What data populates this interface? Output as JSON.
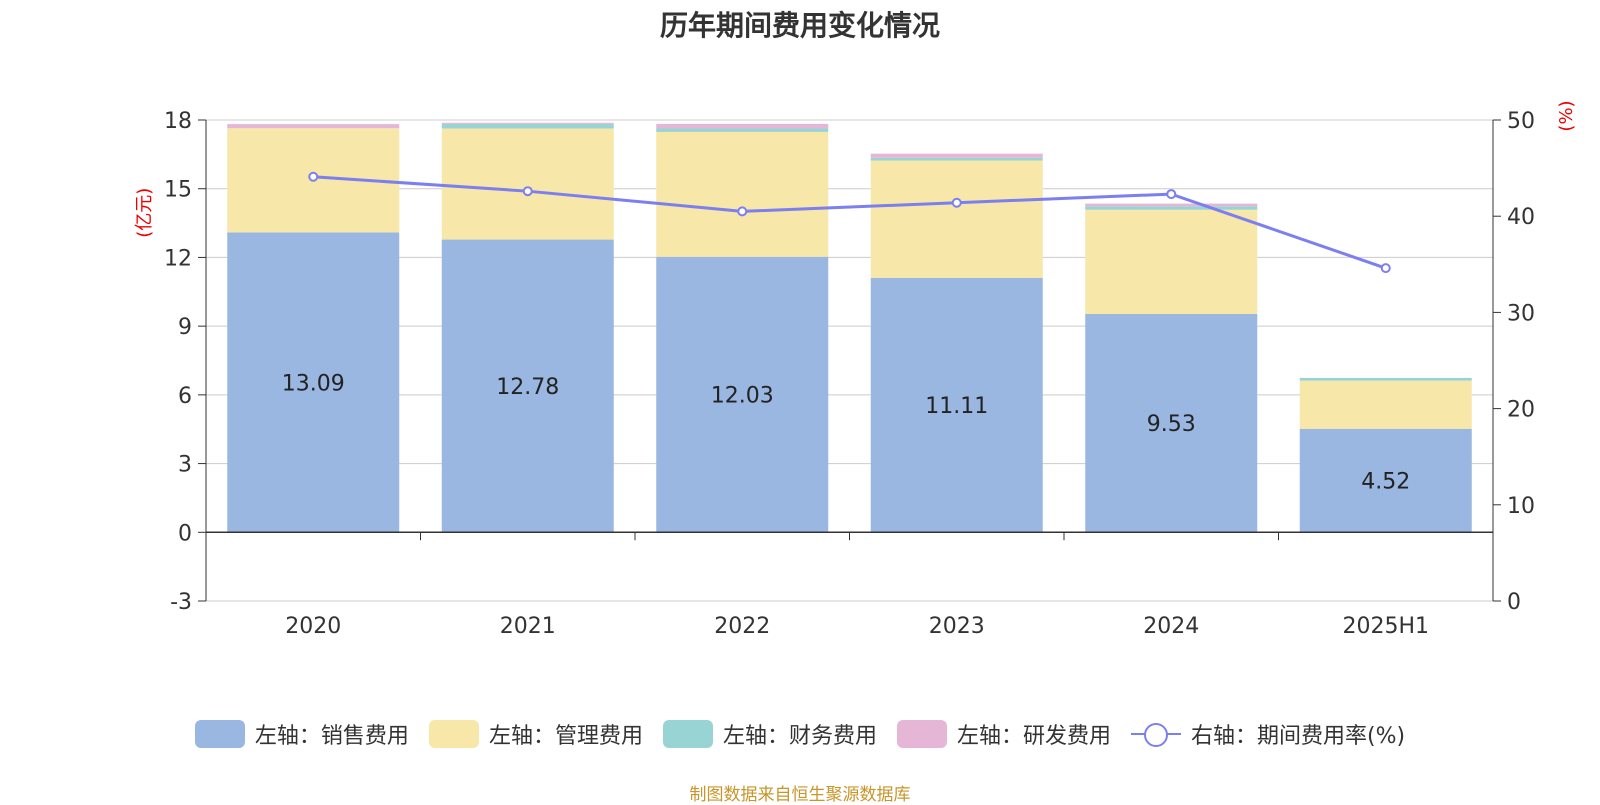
{
  "chart_data": {
    "type": "bar",
    "title": "历年期间费用变化情况",
    "categories": [
      "2020",
      "2021",
      "2022",
      "2023",
      "2024",
      "2025H1"
    ],
    "left_axis": {
      "unit": "(亿元)",
      "ylim": [
        -3,
        18
      ],
      "ticks": [
        "18",
        "15",
        "12",
        "9",
        "6",
        "3",
        "0",
        "-3"
      ]
    },
    "right_axis": {
      "unit": "(%)",
      "ylim": [
        0,
        50
      ],
      "ticks": [
        "50",
        "40",
        "30",
        "20",
        "10",
        "0"
      ]
    },
    "grid": true,
    "legend_position": "bottom",
    "series": [
      {
        "name": "左轴：销售费用",
        "kind": "bar",
        "axis": "left",
        "color": "#9ab7e1",
        "values": [
          13.09,
          12.78,
          12.03,
          11.11,
          9.53,
          4.52
        ],
        "labels": [
          "13.09",
          "12.78",
          "12.03",
          "11.11",
          "9.53",
          "4.52"
        ]
      },
      {
        "name": "左轴：管理费用",
        "kind": "bar",
        "axis": "left",
        "color": "#f7e7a9",
        "values": [
          4.55,
          4.85,
          5.45,
          5.12,
          4.55,
          2.1
        ]
      },
      {
        "name": "左轴：财务费用",
        "kind": "bar",
        "axis": "left",
        "color": "#98d4d4",
        "values": [
          0.0,
          0.2,
          0.15,
          0.12,
          0.15,
          0.12
        ]
      },
      {
        "name": "左轴：研发费用",
        "kind": "bar",
        "axis": "left",
        "color": "#e6b6d6",
        "values": [
          0.18,
          0.05,
          0.2,
          0.18,
          0.12,
          0.0
        ]
      },
      {
        "name": "右轴：期间费用率(%)",
        "kind": "line",
        "axis": "right",
        "color": "#7b7ff0",
        "values": [
          44.1,
          42.6,
          40.5,
          41.4,
          42.3,
          34.6
        ]
      }
    ]
  },
  "source_note": "制图数据来自恒生聚源数据库"
}
